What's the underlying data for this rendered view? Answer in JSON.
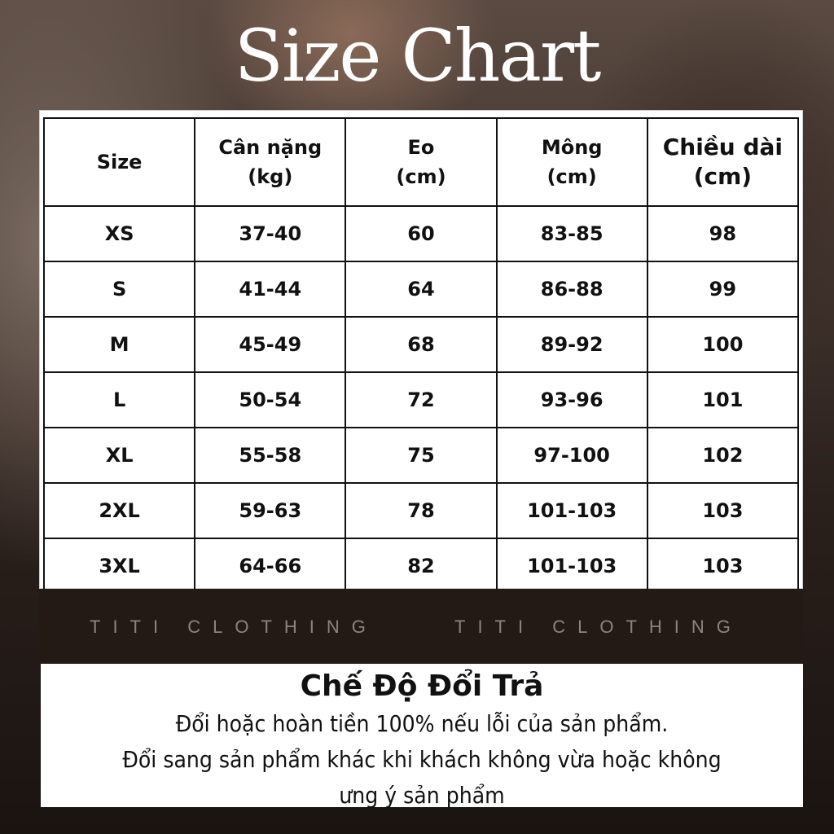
{
  "title": "Size Chart",
  "table": {
    "headers": [
      "Size",
      "Cân nặng\n(kg)",
      "Eo\n(cm)",
      "Mông\n(cm)",
      "Chiều dài\n(cm)"
    ],
    "rows": [
      [
        "XS",
        "37-40",
        "60",
        "83-85",
        "98"
      ],
      [
        "S",
        "41-44",
        "64",
        "86-88",
        "99"
      ],
      [
        "M",
        "45-49",
        "68",
        "89-92",
        "100"
      ],
      [
        "L",
        "50-54",
        "72",
        "93-96",
        "101"
      ],
      [
        "XL",
        "55-58",
        "75",
        "97-100",
        "102"
      ],
      [
        "2XL",
        "59-63",
        "78",
        "101-103",
        "103"
      ],
      [
        "3XL",
        "64-66",
        "82",
        "101-103",
        "103"
      ]
    ]
  },
  "brand": [
    "TITI CLOTHING",
    "TITI CLOTHING"
  ],
  "policy": {
    "title": "Chế Độ Đổi Trả",
    "lines": [
      "Đổi hoặc hoàn tiền 100% nếu lỗi của sản phẩm.",
      "Đổi sang sản phẩm khác khi khách không vừa hoặc không",
      "ưng ý sản phẩm"
    ]
  }
}
